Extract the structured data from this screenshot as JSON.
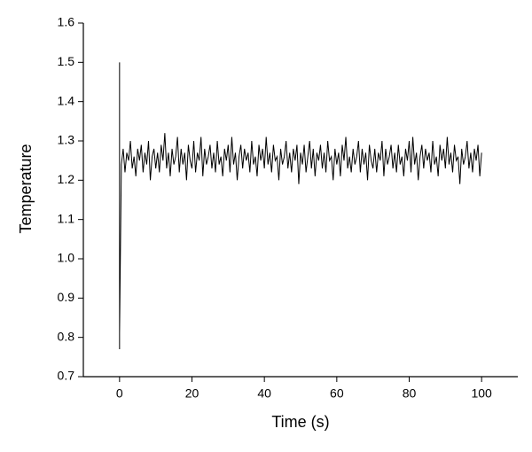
{
  "chart_data": {
    "type": "line",
    "xlabel": "Time (s)",
    "ylabel": "Temperature",
    "color": "#000000",
    "xlim": [
      -10,
      110
    ],
    "ylim": [
      0.7,
      1.6
    ],
    "xticks": [
      0,
      20,
      40,
      60,
      80,
      100
    ],
    "yticks": [
      0.7,
      0.8,
      0.9,
      {
        "value": 1,
        "label": "1.0"
      },
      1.1,
      1.2,
      1.3,
      1.4,
      1.5,
      1.6
    ],
    "x": [
      0,
      0,
      0,
      0,
      0.5,
      1,
      1.5,
      2,
      2.5,
      3,
      3.5,
      4,
      4.5,
      5,
      5.5,
      6,
      6.5,
      7,
      7.5,
      8,
      8.5,
      9,
      9.5,
      10,
      10.5,
      11,
      11.5,
      12,
      12.5,
      13,
      13.5,
      14,
      14.5,
      15,
      15.5,
      16,
      16.5,
      17,
      17.5,
      18,
      18.5,
      19,
      19.5,
      20,
      20.5,
      21,
      21.5,
      22,
      22.5,
      23,
      23.5,
      24,
      24.5,
      25,
      25.5,
      26,
      26.5,
      27,
      27.5,
      28,
      28.5,
      29,
      29.5,
      30,
      30.5,
      31,
      31.5,
      32,
      32.5,
      33,
      33.5,
      34,
      34.5,
      35,
      35.5,
      36,
      36.5,
      37,
      37.5,
      38,
      38.5,
      39,
      39.5,
      40,
      40.5,
      41,
      41.5,
      42,
      42.5,
      43,
      43.5,
      44,
      44.5,
      45,
      45.5,
      46,
      46.5,
      47,
      47.5,
      48,
      48.5,
      49,
      49.5,
      50,
      50.5,
      51,
      51.5,
      52,
      52.5,
      53,
      53.5,
      54,
      54.5,
      55,
      55.5,
      56,
      56.5,
      57,
      57.5,
      58,
      58.5,
      59,
      59.5,
      60,
      60.5,
      61,
      61.5,
      62,
      62.5,
      63,
      63.5,
      64,
      64.5,
      65,
      65.5,
      66,
      66.5,
      67,
      67.5,
      68,
      68.5,
      69,
      69.5,
      70,
      70.5,
      71,
      71.5,
      72,
      72.5,
      73,
      73.5,
      74,
      74.5,
      75,
      75.5,
      76,
      76.5,
      77,
      77.5,
      78,
      78.5,
      79,
      79.5,
      80,
      80.5,
      81,
      81.5,
      82,
      82.5,
      83,
      83.5,
      84,
      84.5,
      85,
      85.5,
      86,
      86.5,
      87,
      87.5,
      88,
      88.5,
      89,
      89.5,
      90,
      90.5,
      91,
      91.5,
      92,
      92.5,
      93,
      93.5,
      94,
      94.5,
      95,
      95.5,
      96,
      96.5,
      97,
      97.5,
      98,
      98.5,
      99,
      99.5,
      100
    ],
    "values": [
      1.5,
      0.77,
      1.3,
      0.81,
      1.24,
      1.28,
      1.22,
      1.27,
      1.25,
      1.3,
      1.23,
      1.26,
      1.21,
      1.28,
      1.25,
      1.29,
      1.22,
      1.27,
      1.24,
      1.3,
      1.2,
      1.26,
      1.28,
      1.23,
      1.27,
      1.22,
      1.29,
      1.25,
      1.32,
      1.23,
      1.27,
      1.21,
      1.28,
      1.24,
      1.26,
      1.31,
      1.22,
      1.28,
      1.24,
      1.27,
      1.2,
      1.29,
      1.25,
      1.23,
      1.3,
      1.22,
      1.27,
      1.25,
      1.31,
      1.21,
      1.28,
      1.24,
      1.26,
      1.29,
      1.23,
      1.27,
      1.22,
      1.3,
      1.24,
      1.26,
      1.21,
      1.28,
      1.25,
      1.29,
      1.22,
      1.31,
      1.24,
      1.27,
      1.2,
      1.26,
      1.29,
      1.23,
      1.28,
      1.25,
      1.27,
      1.22,
      1.3,
      1.24,
      1.26,
      1.21,
      1.29,
      1.25,
      1.28,
      1.23,
      1.31,
      1.24,
      1.27,
      1.22,
      1.29,
      1.25,
      1.26,
      1.2,
      1.28,
      1.24,
      1.26,
      1.3,
      1.23,
      1.27,
      1.22,
      1.28,
      1.25,
      1.29,
      1.19,
      1.27,
      1.24,
      1.29,
      1.22,
      1.26,
      1.3,
      1.23,
      1.28,
      1.21,
      1.27,
      1.25,
      1.29,
      1.23,
      1.27,
      1.22,
      1.3,
      1.25,
      1.26,
      1.2,
      1.28,
      1.24,
      1.27,
      1.21,
      1.29,
      1.25,
      1.31,
      1.23,
      1.26,
      1.22,
      1.28,
      1.24,
      1.26,
      1.3,
      1.22,
      1.28,
      1.24,
      1.27,
      1.2,
      1.29,
      1.25,
      1.23,
      1.28,
      1.22,
      1.27,
      1.25,
      1.3,
      1.21,
      1.28,
      1.24,
      1.26,
      1.29,
      1.23,
      1.27,
      1.22,
      1.29,
      1.24,
      1.26,
      1.21,
      1.28,
      1.25,
      1.3,
      1.22,
      1.31,
      1.24,
      1.27,
      1.2,
      1.26,
      1.29,
      1.23,
      1.28,
      1.25,
      1.27,
      1.22,
      1.3,
      1.24,
      1.26,
      1.21,
      1.29,
      1.25,
      1.28,
      1.23,
      1.31,
      1.24,
      1.27,
      1.22,
      1.29,
      1.25,
      1.26,
      1.19,
      1.28,
      1.24,
      1.26,
      1.3,
      1.23,
      1.27,
      1.22,
      1.28,
      1.25,
      1.29,
      1.21,
      1.27
    ]
  }
}
